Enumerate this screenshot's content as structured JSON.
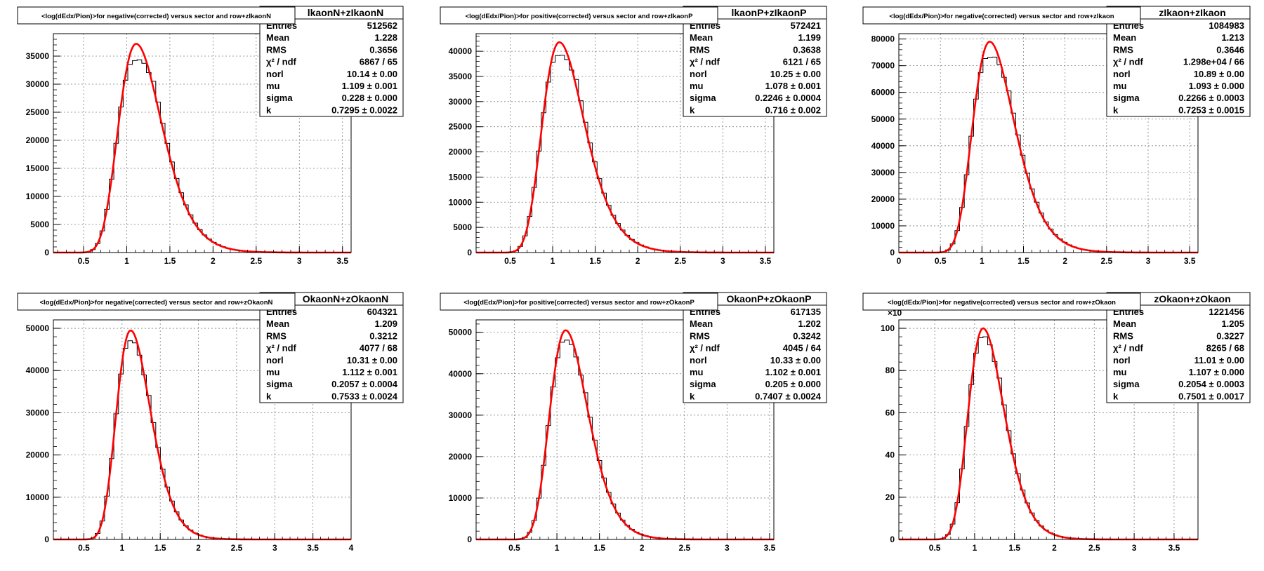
{
  "chart_data": [
    {
      "type": "histogram",
      "title": "<log(dEdx/Pion)>for negative(corrected) versus sector and row+zIkaonN",
      "stats_title": "lkaonN+zIkaonN",
      "stats": [
        {
          "label": "Entries",
          "value": "512562"
        },
        {
          "label": "Mean",
          "value": "1.228"
        },
        {
          "label": "RMS",
          "value": "0.3656"
        },
        {
          "label": "χ² / ndf",
          "value": "6867 / 65"
        },
        {
          "label": "norl",
          "value": "10.14 ± 0.00"
        },
        {
          "label": "mu",
          "value": "1.109 ± 0.001"
        },
        {
          "label": "sigma",
          "value": "0.228 ± 0.000"
        },
        {
          "label": "k",
          "value": "0.7295 ± 0.0022"
        }
      ],
      "xlim": [
        0.15,
        3.6
      ],
      "ylim": [
        0,
        39000
      ],
      "xticks": [
        0.5,
        1,
        1.5,
        2,
        2.5,
        3,
        3.5
      ],
      "xtick_labels": [
        "0.5",
        "1",
        "1.5",
        "2",
        "2.5",
        "3",
        "3.5"
      ],
      "yticks": [
        0,
        5000,
        10000,
        15000,
        20000,
        25000,
        30000,
        35000
      ],
      "ytick_labels": [
        "0",
        "5000",
        "10000",
        "15000",
        "20000",
        "25000",
        "30000",
        "35000"
      ],
      "y_multiplier_label": "",
      "fit": {
        "amplitude": 37200,
        "mu": 1.109,
        "sigma": 0.228,
        "k": 0.7295
      },
      "hist_peak": 34000
    },
    {
      "type": "histogram",
      "title": "<log(dEdx/Pion)>for positive(corrected) versus sector and row+zIkaonP",
      "stats_title": "lkaonP+zIkaonP",
      "stats": [
        {
          "label": "Entries",
          "value": "572421"
        },
        {
          "label": "Mean",
          "value": "1.199"
        },
        {
          "label": "RMS",
          "value": "0.3638"
        },
        {
          "label": "χ² / ndf",
          "value": "6121 / 65"
        },
        {
          "label": "norl",
          "value": "10.25 ± 0.00"
        },
        {
          "label": "mu",
          "value": "1.078 ± 0.001"
        },
        {
          "label": "sigma",
          "value": "0.2246 ± 0.0004"
        },
        {
          "label": "k",
          "value": "0.716 ± 0.002"
        }
      ],
      "xlim": [
        0.1,
        3.6
      ],
      "ylim": [
        0,
        43500
      ],
      "xticks": [
        0.5,
        1,
        1.5,
        2,
        2.5,
        3,
        3.5
      ],
      "xtick_labels": [
        "0.5",
        "1",
        "1.5",
        "2",
        "2.5",
        "3",
        "3.5"
      ],
      "yticks": [
        0,
        5000,
        10000,
        15000,
        20000,
        25000,
        30000,
        35000,
        40000
      ],
      "ytick_labels": [
        "0",
        "5000",
        "10000",
        "15000",
        "20000",
        "25000",
        "30000",
        "35000",
        "40000"
      ],
      "y_multiplier_label": "",
      "fit": {
        "amplitude": 41800,
        "mu": 1.078,
        "sigma": 0.2246,
        "k": 0.716
      },
      "hist_peak": 39000
    },
    {
      "type": "histogram",
      "title": "<log(dEdx/Pion)>for negative(corrected) versus sector and row+zIkaon",
      "stats_title": "zIkaon+zIkaon",
      "stats": [
        {
          "label": "Entries",
          "value": "1084983"
        },
        {
          "label": "Mean",
          "value": "1.213"
        },
        {
          "label": "RMS",
          "value": "0.3646"
        },
        {
          "label": "χ² / ndf",
          "value": "1.298e+04 / 66"
        },
        {
          "label": "norl",
          "value": "10.89 ± 0.00"
        },
        {
          "label": "mu",
          "value": "1.093 ± 0.000"
        },
        {
          "label": "sigma",
          "value": "0.2266 ± 0.0003"
        },
        {
          "label": "k",
          "value": "0.7253 ± 0.0015"
        }
      ],
      "xlim": [
        0,
        3.6
      ],
      "ylim": [
        0,
        82000
      ],
      "xticks": [
        0,
        0.5,
        1,
        1.5,
        2,
        2.5,
        3,
        3.5
      ],
      "xtick_labels": [
        "0",
        "0.5",
        "1",
        "1.5",
        "2",
        "2.5",
        "3",
        "3.5"
      ],
      "yticks": [
        0,
        10000,
        20000,
        30000,
        40000,
        50000,
        60000,
        70000,
        80000
      ],
      "ytick_labels": [
        "0",
        "10000",
        "20000",
        "30000",
        "40000",
        "50000",
        "60000",
        "70000",
        "80000"
      ],
      "y_multiplier_label": "",
      "fit": {
        "amplitude": 79000,
        "mu": 1.093,
        "sigma": 0.2266,
        "k": 0.7253
      },
      "hist_peak": 73000
    },
    {
      "type": "histogram",
      "title": "<log(dEdx/Pion)>for negative(corrected) versus sector and row+zOkaonN",
      "stats_title": "OkaonN+zOkaonN",
      "stats": [
        {
          "label": "Entries",
          "value": "604321"
        },
        {
          "label": "Mean",
          "value": "1.209"
        },
        {
          "label": "RMS",
          "value": "0.3212"
        },
        {
          "label": "χ² / ndf",
          "value": "4077 / 68"
        },
        {
          "label": "norl",
          "value": "10.31 ± 0.00"
        },
        {
          "label": "mu",
          "value": "1.112 ± 0.001"
        },
        {
          "label": "sigma",
          "value": "0.2057 ± 0.0004"
        },
        {
          "label": "k",
          "value": "0.7533 ± 0.0024"
        }
      ],
      "xlim": [
        0.1,
        4.0
      ],
      "ylim": [
        0,
        52000
      ],
      "xticks": [
        0.5,
        1,
        1.5,
        2,
        2.5,
        3,
        3.5,
        4
      ],
      "xtick_labels": [
        "0.5",
        "1",
        "1.5",
        "2",
        "2.5",
        "3",
        "3.5",
        "4"
      ],
      "yticks": [
        0,
        10000,
        20000,
        30000,
        40000,
        50000
      ],
      "ytick_labels": [
        "0",
        "10000",
        "20000",
        "30000",
        "40000",
        "50000"
      ],
      "y_multiplier_label": "",
      "fit": {
        "amplitude": 49500,
        "mu": 1.112,
        "sigma": 0.2057,
        "k": 0.7533
      },
      "hist_peak": 47000
    },
    {
      "type": "histogram",
      "title": "<log(dEdx/Pion)>for positive(corrected) versus sector and row+zOkaonP",
      "stats_title": "OkaonP+zOkaonP",
      "stats": [
        {
          "label": "Entries",
          "value": "617135"
        },
        {
          "label": "Mean",
          "value": "1.202"
        },
        {
          "label": "RMS",
          "value": "0.3242"
        },
        {
          "label": "χ² / ndf",
          "value": "4045 / 64"
        },
        {
          "label": "norl",
          "value": "10.33 ± 0.00"
        },
        {
          "label": "mu",
          "value": "1.102 ± 0.001"
        },
        {
          "label": "sigma",
          "value": "0.205 ± 0.000"
        },
        {
          "label": "k",
          "value": "0.7407 ± 0.0024"
        }
      ],
      "xlim": [
        0.05,
        3.55
      ],
      "ylim": [
        0,
        53000
      ],
      "xticks": [
        0.5,
        1,
        1.5,
        2,
        2.5,
        3,
        3.5
      ],
      "xtick_labels": [
        "0.5",
        "1",
        "1.5",
        "2",
        "2.5",
        "3",
        "3.5"
      ],
      "yticks": [
        0,
        10000,
        20000,
        30000,
        40000,
        50000
      ],
      "ytick_labels": [
        "0",
        "10000",
        "20000",
        "30000",
        "40000",
        "50000"
      ],
      "y_multiplier_label": "",
      "fit": {
        "amplitude": 50500,
        "mu": 1.102,
        "sigma": 0.205,
        "k": 0.7407
      },
      "hist_peak": 48000
    },
    {
      "type": "histogram",
      "title": "<log(dEdx/Pion)>for negative(corrected) versus sector and row+zOkaon",
      "stats_title": "zOkaon+zOkaon",
      "stats": [
        {
          "label": "Entries",
          "value": "1221456"
        },
        {
          "label": "Mean",
          "value": "1.205"
        },
        {
          "label": "RMS",
          "value": "0.3227"
        },
        {
          "label": "χ² / ndf",
          "value": "8265 / 68"
        },
        {
          "label": "norl",
          "value": "11.01 ± 0.00"
        },
        {
          "label": "mu",
          "value": "1.107 ± 0.000"
        },
        {
          "label": "sigma",
          "value": "0.2054 ± 0.0003"
        },
        {
          "label": "k",
          "value": "0.7501 ± 0.0017"
        }
      ],
      "xlim": [
        0.05,
        3.8
      ],
      "ylim": [
        0,
        104
      ],
      "xticks": [
        0.5,
        1,
        1.5,
        2,
        2.5,
        3,
        3.5
      ],
      "xtick_labels": [
        "0.5",
        "1",
        "1.5",
        "2",
        "2.5",
        "3",
        "3.5"
      ],
      "yticks": [
        0,
        20,
        40,
        60,
        80,
        100
      ],
      "ytick_labels": [
        "0",
        "20",
        "40",
        "60",
        "80",
        "100"
      ],
      "y_multiplier_label": "×10",
      "fit": {
        "amplitude": 100,
        "mu": 1.107,
        "sigma": 0.2054,
        "k": 0.7501
      },
      "hist_peak": 96
    }
  ],
  "colors": {
    "fit": "#ff0000",
    "hist": "#000000",
    "grid": "#808080",
    "frame": "#000000",
    "background": "#ffffff"
  }
}
